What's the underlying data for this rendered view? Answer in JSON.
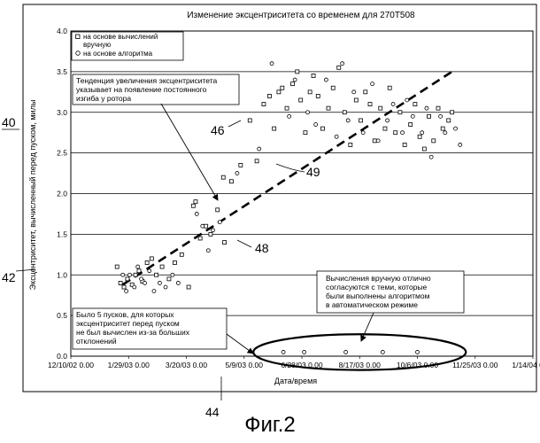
{
  "figure": {
    "caption": "Фиг.2",
    "reference_numerals": {
      "chart": "40",
      "y_axis": "42",
      "x_axis": "44",
      "algorithm_points": "46",
      "manual_point": "48",
      "trend_line": "49"
    }
  },
  "annotations": {
    "trend_note": "Тенденция увеличения эксцентриситета\nуказывает на появление постоянного\nизгиба у ротора",
    "agreement_note": "Вычисления вручную отлично\nсогласуются с теми, которые\nбыли выполнены алгоритмом\nв автоматическом режиме",
    "missing_note": "Было 5 пусков, для которых\nэксцентриситет перед пуском\nне был вычислен из-за больших\nотклонений"
  },
  "chart_data": {
    "type": "scatter",
    "title": "Изменение эксцентриситета со временем для 270Т508",
    "xlabel": "Дата/время",
    "ylabel": "Эксцентриситет, вычисленный перед пуском, милы",
    "x_ticks": [
      "12/10/02 0.00",
      "1/29/03 0.00",
      "3/20/03 0.00",
      "5/9/03 0.00",
      "6/28/03 0.00",
      "8/17/03 0.00",
      "10/6/03 0.00",
      "11/25/03 0.00",
      "1/14/04 0.00"
    ],
    "y_ticks": [
      "0.0",
      "0.5",
      "1.0",
      "1.5",
      "2.0",
      "2.5",
      "3.0",
      "3.5",
      "4.0"
    ],
    "xlim": [
      "2002-12-10",
      "2004-01-14"
    ],
    "ylim": [
      0,
      4
    ],
    "grid": "horizontal",
    "legend_position": "top-left",
    "legend": [
      "на основе вычислений вручную",
      "на основе алгоритма"
    ],
    "series": [
      {
        "name": "на основе вычислений вручную",
        "marker": "square",
        "points": [
          [
            "2003-01-19",
            1.1
          ],
          [
            "2003-01-22",
            0.9
          ],
          [
            "2003-01-25",
            0.85
          ],
          [
            "2003-01-28",
            0.95
          ],
          [
            "2003-02-01",
            0.88
          ],
          [
            "2003-02-04",
            1.0
          ],
          [
            "2003-02-07",
            1.05
          ],
          [
            "2003-02-10",
            0.92
          ],
          [
            "2003-02-14",
            1.15
          ],
          [
            "2003-02-18",
            1.2
          ],
          [
            "2003-02-22",
            1.0
          ],
          [
            "2003-02-27",
            1.1
          ],
          [
            "2003-03-05",
            0.95
          ],
          [
            "2003-03-10",
            1.15
          ],
          [
            "2003-03-16",
            1.25
          ],
          [
            "2003-03-22",
            0.85
          ],
          [
            "2003-03-26",
            1.85
          ],
          [
            "2003-03-28",
            1.9
          ],
          [
            "2003-04-01",
            1.45
          ],
          [
            "2003-04-06",
            1.6
          ],
          [
            "2003-04-10",
            1.5
          ],
          [
            "2003-04-16",
            1.8
          ],
          [
            "2003-04-21",
            2.2
          ],
          [
            "2003-04-22",
            1.4
          ],
          [
            "2003-04-28",
            2.15
          ],
          [
            "2003-05-06",
            2.35
          ],
          [
            "2003-05-14",
            2.9
          ],
          [
            "2003-05-20",
            2.4
          ],
          [
            "2003-05-26",
            3.1
          ],
          [
            "2003-05-31",
            3.2
          ],
          [
            "2003-06-04",
            2.8
          ],
          [
            "2003-06-08",
            3.25
          ],
          [
            "2003-06-11",
            3.3
          ],
          [
            "2003-06-15",
            3.05
          ],
          [
            "2003-06-20",
            3.35
          ],
          [
            "2003-06-24",
            3.5
          ],
          [
            "2003-06-27",
            3.15
          ],
          [
            "2003-07-01",
            2.75
          ],
          [
            "2003-07-05",
            3.25
          ],
          [
            "2003-07-08",
            3.45
          ],
          [
            "2003-07-12",
            3.2
          ],
          [
            "2003-07-16",
            2.8
          ],
          [
            "2003-07-21",
            3.05
          ],
          [
            "2003-07-25",
            3.3
          ],
          [
            "2003-07-30",
            3.55
          ],
          [
            "2003-08-04",
            3.0
          ],
          [
            "2003-08-09",
            2.6
          ],
          [
            "2003-08-14",
            3.15
          ],
          [
            "2003-08-18",
            2.9
          ],
          [
            "2003-08-22",
            3.25
          ],
          [
            "2003-08-26",
            3.1
          ],
          [
            "2003-08-30",
            2.65
          ],
          [
            "2003-09-04",
            3.05
          ],
          [
            "2003-09-08",
            2.8
          ],
          [
            "2003-09-12",
            3.3
          ],
          [
            "2003-09-17",
            2.75
          ],
          [
            "2003-09-21",
            3.0
          ],
          [
            "2003-09-25",
            2.6
          ],
          [
            "2003-09-30",
            2.85
          ],
          [
            "2003-10-04",
            3.1
          ],
          [
            "2003-10-08",
            2.7
          ],
          [
            "2003-10-12",
            2.55
          ],
          [
            "2003-10-16",
            2.95
          ],
          [
            "2003-10-20",
            2.65
          ],
          [
            "2003-10-24",
            3.05
          ],
          [
            "2003-10-28",
            2.8
          ],
          [
            "2003-11-02",
            2.9
          ],
          [
            "2003-11-05",
            3.0
          ]
        ]
      },
      {
        "name": "на основе алгоритма",
        "marker": "circle",
        "points": [
          [
            "2003-01-24",
            1.0
          ],
          [
            "2003-01-27",
            0.8
          ],
          [
            "2003-01-30",
            1.0
          ],
          [
            "2003-02-03",
            0.85
          ],
          [
            "2003-02-06",
            1.1
          ],
          [
            "2003-02-09",
            0.95
          ],
          [
            "2003-02-12",
            0.9
          ],
          [
            "2003-02-16",
            1.05
          ],
          [
            "2003-02-20",
            0.8
          ],
          [
            "2003-02-25",
            0.9
          ],
          [
            "2003-03-02",
            0.85
          ],
          [
            "2003-03-08",
            1.0
          ],
          [
            "2003-03-13",
            0.9
          ],
          [
            "2003-03-29",
            1.75
          ],
          [
            "2003-04-03",
            1.6
          ],
          [
            "2003-04-08",
            1.3
          ],
          [
            "2003-04-12",
            1.55
          ],
          [
            "2003-04-18",
            1.65
          ],
          [
            "2003-05-03",
            2.25
          ],
          [
            "2003-05-22",
            2.55
          ],
          [
            "2003-06-02",
            3.6
          ],
          [
            "2003-06-17",
            2.95
          ],
          [
            "2003-06-22",
            3.4
          ],
          [
            "2003-07-03",
            3.0
          ],
          [
            "2003-07-10",
            2.85
          ],
          [
            "2003-07-19",
            3.4
          ],
          [
            "2003-07-28",
            2.7
          ],
          [
            "2003-08-02",
            3.6
          ],
          [
            "2003-08-07",
            2.9
          ],
          [
            "2003-08-12",
            3.25
          ],
          [
            "2003-08-20",
            2.75
          ],
          [
            "2003-08-28",
            3.35
          ],
          [
            "2003-09-02",
            2.65
          ],
          [
            "2003-09-10",
            2.9
          ],
          [
            "2003-09-15",
            3.1
          ],
          [
            "2003-09-23",
            2.75
          ],
          [
            "2003-09-27",
            3.15
          ],
          [
            "2003-10-02",
            2.95
          ],
          [
            "2003-10-10",
            2.75
          ],
          [
            "2003-10-14",
            3.05
          ],
          [
            "2003-10-18",
            2.45
          ],
          [
            "2003-10-26",
            2.95
          ],
          [
            "2003-10-30",
            2.75
          ],
          [
            "2003-11-08",
            2.8
          ],
          [
            "2003-11-12",
            2.6
          ],
          [
            "2003-06-12",
            0.05
          ],
          [
            "2003-06-30",
            0.05
          ],
          [
            "2003-08-05",
            0.05
          ],
          [
            "2003-09-06",
            0.05
          ],
          [
            "2003-10-06",
            0.05
          ]
        ]
      }
    ],
    "trend_line": {
      "from": [
        "2003-01-24",
        0.88
      ],
      "to": [
        "2003-11-05",
        3.5
      ]
    },
    "highlight_ellipse": {
      "center": [
        "2003-08-17",
        0.05
      ],
      "x_radius_days": 92,
      "y_radius": 0.22
    }
  }
}
